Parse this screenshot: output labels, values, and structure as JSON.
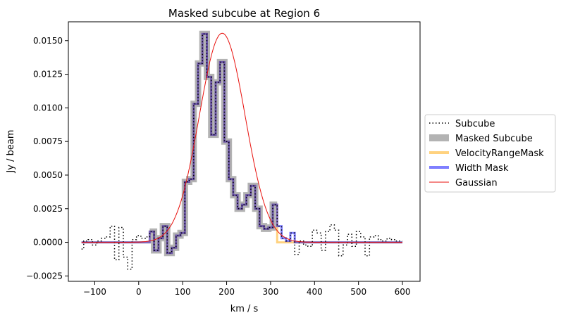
{
  "chart_data": {
    "type": "line",
    "title": "Masked subcube at Region 6",
    "xlabel": "km / s",
    "ylabel": "Jy / beam",
    "xlim": [
      -160,
      640
    ],
    "ylim": [
      -0.0029,
      0.0164
    ],
    "xticks": [
      -100,
      0,
      100,
      200,
      300,
      400,
      500,
      600
    ],
    "xtick_labels": [
      "−100",
      "0",
      "100",
      "200",
      "300",
      "400",
      "500",
      "600"
    ],
    "yticks": [
      -0.0025,
      0.0,
      0.0025,
      0.005,
      0.0075,
      0.01,
      0.0125,
      0.015
    ],
    "ytick_labels": [
      "−0.0025",
      "0.0000",
      "0.0025",
      "0.0050",
      "0.0075",
      "0.0100",
      "0.0125",
      "0.0150"
    ],
    "grid": false,
    "legend_position": "center-right-outside",
    "x_start": -130,
    "x_step": 10,
    "mask_range": [
      25,
      345
    ],
    "velocity_mask_range": [
      25,
      305
    ],
    "series": [
      {
        "name": "Subcube",
        "color": "#000000",
        "style": "dotted",
        "values": [
          -0.0005,
          0.0001,
          0.0002,
          -0.0002,
          0.0001,
          0.0003,
          0.0004,
          0.0012,
          -0.0013,
          0.0011,
          -0.0011,
          -0.002,
          0.0002,
          0.0005,
          0.0003,
          0.0004,
          0.0008,
          -0.0006,
          0.0003,
          0.0012,
          -0.0008,
          -0.0004,
          0.0005,
          0.0007,
          0.0045,
          0.0047,
          0.0103,
          0.0133,
          0.0155,
          0.0123,
          0.008,
          0.0119,
          0.0134,
          0.0075,
          0.0047,
          0.0035,
          0.0025,
          0.0028,
          0.0035,
          0.0042,
          0.0025,
          0.0012,
          0.001,
          0.0011,
          0.0028,
          0.0012,
          0.0003,
          0.0001,
          0.0007,
          -0.0009,
          0.0001,
          -0.0002,
          -0.0003,
          0.0009,
          0.0007,
          -0.0006,
          0.0008,
          0.0013,
          0.0009,
          -0.001,
          -0.0002,
          0.0006,
          -0.0003,
          0.0008,
          0.0004,
          -0.001,
          0.0004,
          0.0005,
          0.0002,
          0.0001,
          0.0003,
          0.0002,
          0.0001,
          0.0001
        ]
      },
      {
        "name": "Masked Subcube",
        "color": "#808080"
      },
      {
        "name": "VelocityRangeMask",
        "color": "#ffa500"
      },
      {
        "name": "Width Mask",
        "color": "#0000ff"
      },
      {
        "name": "Gaussian",
        "color": "#e8100c",
        "amplitude": 0.01555,
        "center": 190,
        "sigma": 52
      }
    ]
  }
}
